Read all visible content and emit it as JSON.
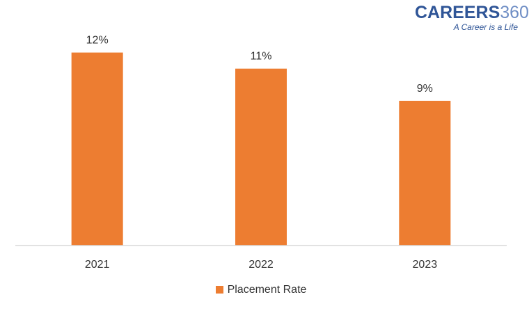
{
  "logo": {
    "brand": "CAREERS",
    "number": "360",
    "tagline": "A Career is a Life"
  },
  "chart_data": {
    "type": "bar",
    "categories": [
      "2021",
      "2022",
      "2023"
    ],
    "series": [
      {
        "name": "Placement Rate",
        "values": [
          12,
          11,
          9
        ],
        "labels": [
          "12%",
          "11%",
          "9%"
        ],
        "color": "#ed7d31"
      }
    ],
    "ylim": [
      0,
      12.5
    ],
    "grid": false,
    "legend": "bottom"
  }
}
